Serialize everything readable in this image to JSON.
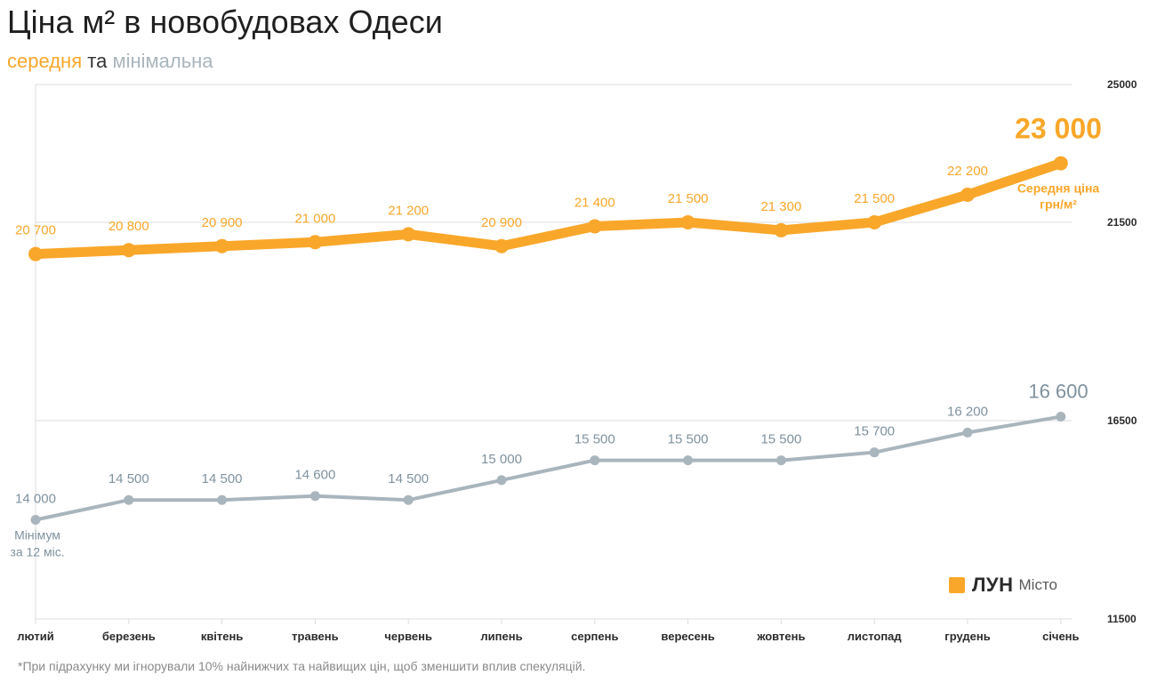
{
  "title": "Ціна м² в новобудовах Одеси",
  "subtitle": {
    "part1": "середня",
    "part2": "та",
    "part3": "мінімальна"
  },
  "footnote": "*При підрахунку ми ігнорували 10% найнижчих та найвищих цін, щоб зменшити вплив спекуляцій.",
  "logo": {
    "brand": "ЛУН",
    "sub": "Місто"
  },
  "colors": {
    "average": "#f9a72a",
    "minimum": "#a9b5bd",
    "min_label": "#7f929e",
    "grid": "#dddddd",
    "axis_text": "#2b2b2b",
    "subtitle_mid": "#333333"
  },
  "chart_data": {
    "type": "line",
    "categories": [
      "лютий",
      "березень",
      "квітень",
      "травень",
      "червень",
      "липень",
      "серпень",
      "вересень",
      "жовтень",
      "листопад",
      "грудень",
      "січень"
    ],
    "y_ticks": [
      "25000",
      "21500",
      "16500",
      "11500"
    ],
    "ylim": [
      11500,
      25000
    ],
    "grid": true,
    "series": [
      {
        "name": "середня",
        "values": [
          20700,
          20800,
          20900,
          21000,
          21200,
          20900,
          21400,
          21500,
          21300,
          21500,
          22200,
          23000
        ],
        "labels": [
          "20 700",
          "20 800",
          "20 900",
          "21 000",
          "21 200",
          "20 900",
          "21 400",
          "21 500",
          "21 300",
          "21 500",
          "22 200",
          "23 000"
        ]
      },
      {
        "name": "мінімальна",
        "values": [
          14000,
          14500,
          14500,
          14600,
          14500,
          15000,
          15500,
          15500,
          15500,
          15700,
          16200,
          16600
        ],
        "labels": [
          "14 000",
          "14 500",
          "14 500",
          "14 600",
          "14 500",
          "15 000",
          "15 500",
          "15 500",
          "15 500",
          "15 700",
          "16 200",
          "16 600"
        ]
      }
    ],
    "annotations": {
      "average": [
        "Середня ціна",
        "грн/м²"
      ],
      "minimum": [
        "Мінімум",
        "за 12 міс."
      ]
    }
  }
}
